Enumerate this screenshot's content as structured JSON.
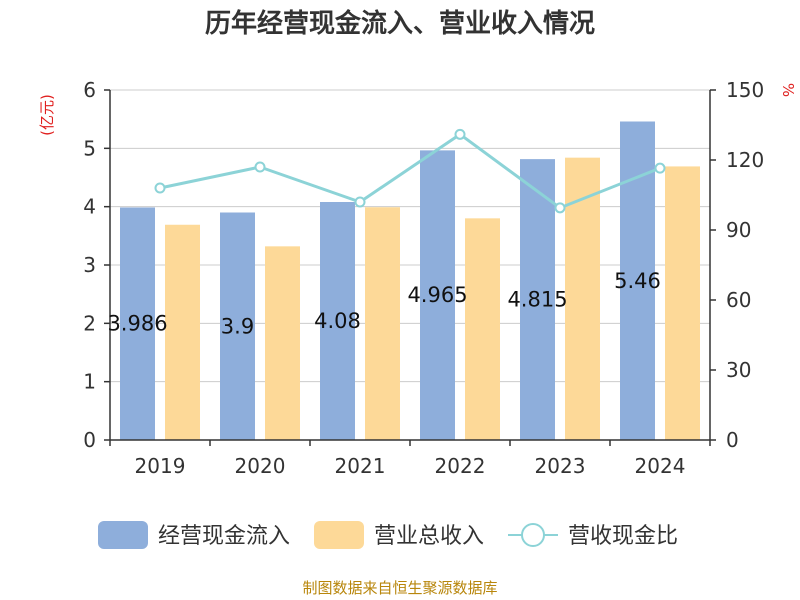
{
  "chart_data": {
    "type": "bar",
    "title": "历年经营现金流入、营业收入情况",
    "categories": [
      "2019",
      "2020",
      "2021",
      "2022",
      "2023",
      "2024"
    ],
    "y_left": {
      "unit_label": "(亿元)",
      "range": [
        0,
        6
      ],
      "ticks": [
        0,
        1,
        2,
        3,
        4,
        5,
        6
      ]
    },
    "y_right": {
      "unit_label": "%",
      "range": [
        0,
        150
      ],
      "ticks": [
        0,
        30,
        60,
        90,
        120,
        150
      ]
    },
    "series": [
      {
        "name": "经营现金流入",
        "type": "bar",
        "axis": "left",
        "color": "#8eaedb",
        "values": [
          3.986,
          3.9,
          4.08,
          4.965,
          4.815,
          5.46
        ],
        "labels": [
          "3.986",
          "3.9",
          "4.08",
          "4.965",
          "4.815",
          "5.46"
        ]
      },
      {
        "name": "营业总收入",
        "type": "bar",
        "axis": "left",
        "color": "#fdd998",
        "values": [
          3.69,
          3.32,
          3.99,
          3.8,
          4.84,
          4.69
        ]
      },
      {
        "name": "营收现金比",
        "type": "line",
        "axis": "right",
        "color": "#8cd3d7",
        "values": [
          108,
          117,
          102,
          131,
          99.5,
          116.5
        ]
      }
    ],
    "grid": true,
    "legend_position": "bottom"
  },
  "footer": {
    "source": "制图数据来自恒生聚源数据库"
  }
}
